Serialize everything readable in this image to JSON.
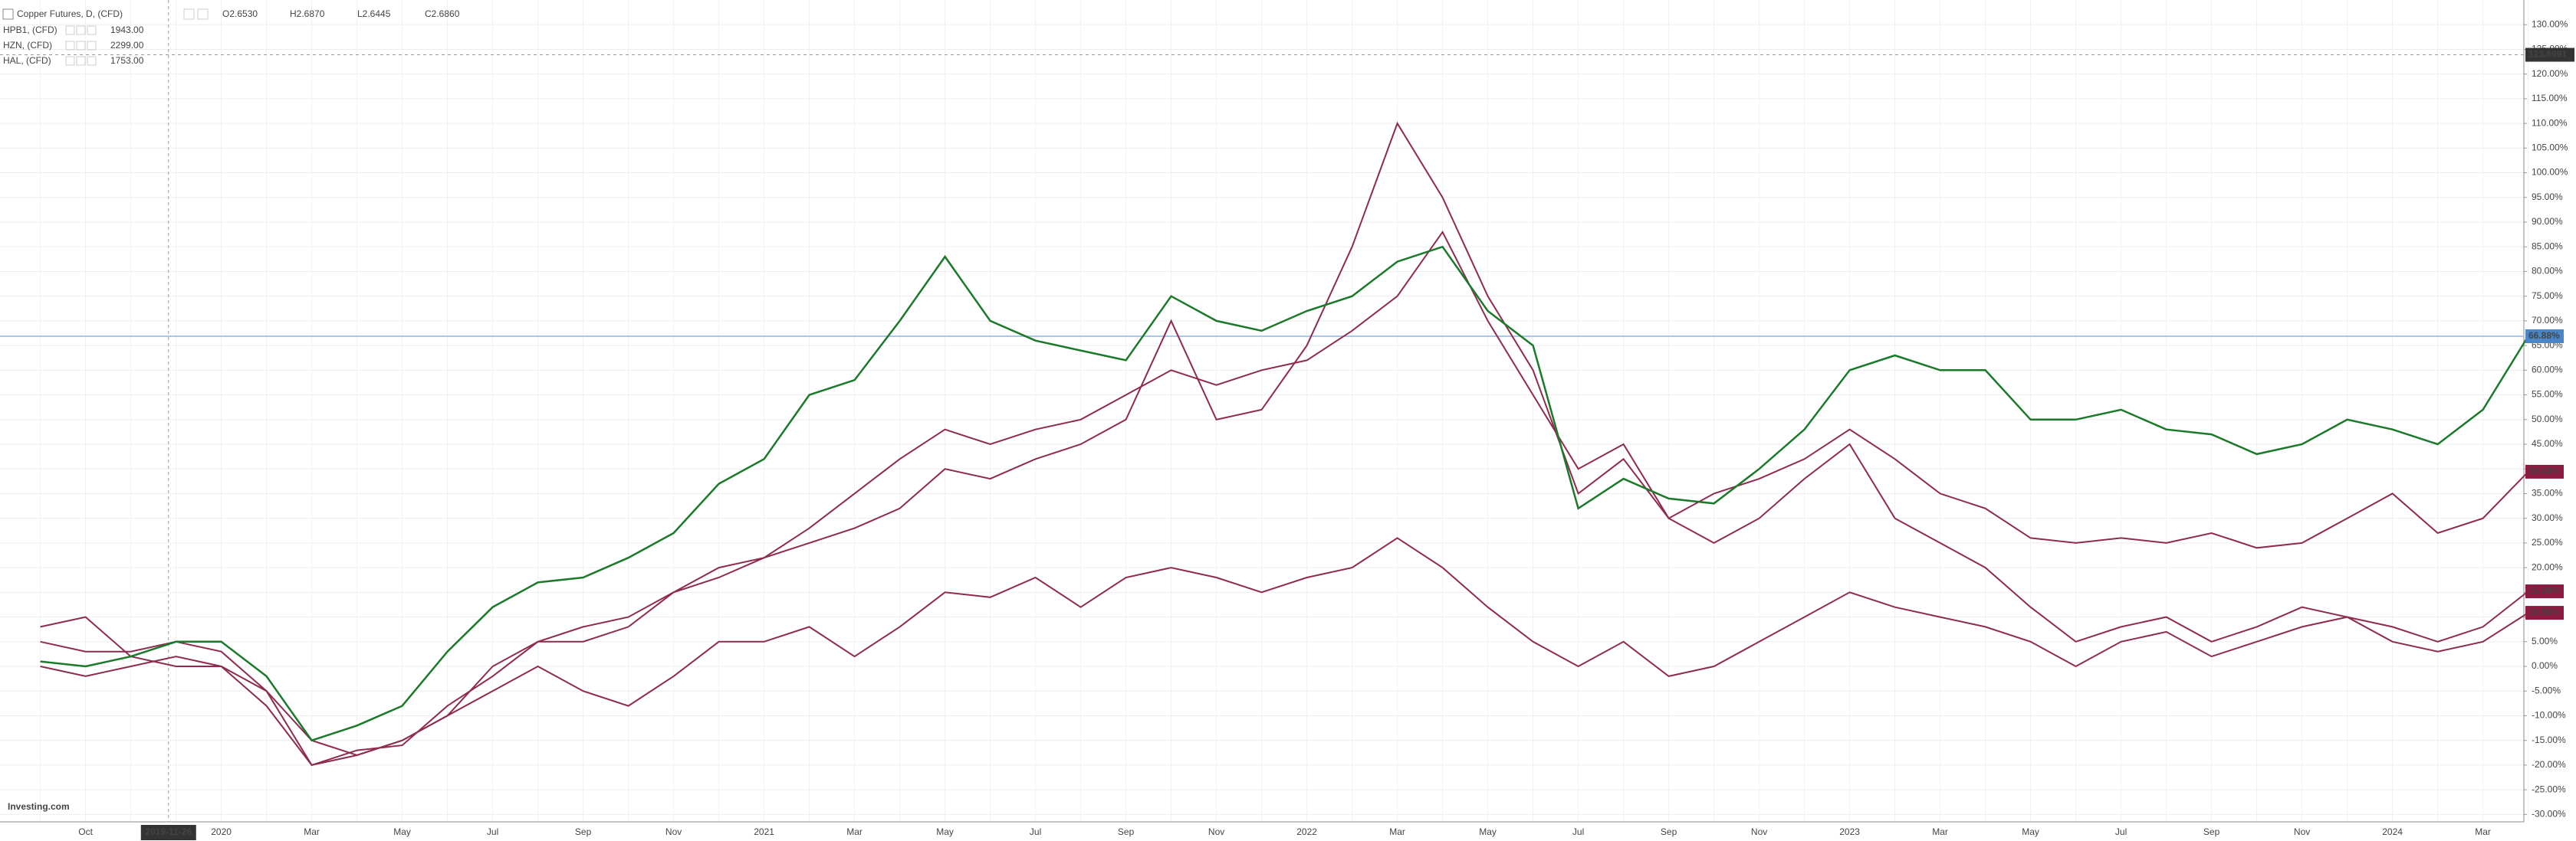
{
  "chart_data": {
    "type": "line",
    "title": "Copper Futures, D, (CFD)",
    "ohlc": [
      "O2.6530",
      "H2.6870",
      "L2.6445",
      "C2.6860"
    ],
    "logo": "Investing.com",
    "crosshair_x": "2019-11-26",
    "crosshair_y": 123.8991,
    "grid": true,
    "categories": [
      null,
      "Oct",
      null,
      null,
      "2020",
      null,
      "Mar",
      null,
      "May",
      null,
      "Jul",
      null,
      "Sep",
      null,
      "Nov",
      null,
      "2021",
      null,
      "Mar",
      null,
      "May",
      null,
      "Jul",
      null,
      "Sep",
      null,
      "Nov",
      null,
      "2022",
      null,
      "Mar",
      null,
      "May",
      null,
      "Jul",
      null,
      "Sep",
      null,
      "Nov",
      null,
      "2023",
      null,
      "Mar",
      null,
      "May",
      null,
      "Jul",
      null,
      "Sep",
      null,
      "Nov",
      null,
      "2024",
      null,
      "Mar",
      null
    ],
    "series": [
      {
        "name": "Copper Futures, D, (CFD)",
        "color": "#1b7a2a",
        "end_label": "66.88%",
        "end_color": "#4a86c8",
        "values": [
          1,
          0,
          2,
          5,
          5,
          -2,
          -15,
          -12,
          -8,
          3,
          12,
          17,
          18,
          22,
          27,
          37,
          42,
          55,
          58,
          70,
          83,
          70,
          66,
          64,
          62,
          75,
          70,
          68,
          72,
          75,
          82,
          85,
          72,
          65,
          32,
          38,
          34,
          33,
          40,
          48,
          60,
          63,
          60,
          60,
          50,
          50,
          52,
          48,
          47,
          43,
          45,
          50,
          48,
          45,
          52,
          66.88
        ]
      },
      {
        "name": "HPB1, (CFD)",
        "price": "1943.00",
        "color": "#8e2b4f",
        "end_label": "39.43%",
        "end_color": "#8e1a40",
        "values": [
          5,
          3,
          3,
          5,
          3,
          -5,
          -20,
          -18,
          -15,
          -10,
          0,
          5,
          8,
          10,
          15,
          20,
          22,
          25,
          28,
          32,
          40,
          38,
          42,
          45,
          50,
          70,
          50,
          52,
          65,
          85,
          110,
          95,
          75,
          60,
          35,
          42,
          30,
          35,
          38,
          42,
          48,
          42,
          35,
          32,
          26,
          25,
          26,
          25,
          27,
          24,
          25,
          30,
          35,
          27,
          30,
          39.43
        ]
      },
      {
        "name": "HZN, (CFD)",
        "price": "2299.00",
        "color": "#8e2b4f",
        "end_label": "15.20%",
        "end_color": "#8e1a40",
        "values": [
          8,
          10,
          2,
          0,
          0,
          -8,
          -20,
          -17,
          -16,
          -8,
          -2,
          5,
          5,
          8,
          15,
          18,
          22,
          28,
          35,
          42,
          48,
          45,
          48,
          50,
          55,
          60,
          57,
          60,
          62,
          68,
          75,
          88,
          70,
          55,
          40,
          45,
          30,
          25,
          30,
          38,
          45,
          30,
          25,
          20,
          12,
          5,
          8,
          10,
          5,
          8,
          12,
          10,
          8,
          5,
          8,
          15.2
        ]
      },
      {
        "name": "HAL, (CFD)",
        "price": "1753.00",
        "color": "#8e2b4f",
        "end_label": "10.85%",
        "end_color": "#8e1a40",
        "values": [
          0,
          -2,
          0,
          2,
          0,
          -5,
          -15,
          -18,
          -15,
          -10,
          -5,
          0,
          -5,
          -8,
          -2,
          5,
          5,
          8,
          2,
          8,
          15,
          14,
          18,
          12,
          18,
          20,
          18,
          15,
          18,
          20,
          26,
          20,
          12,
          5,
          0,
          5,
          -2,
          0,
          5,
          10,
          15,
          12,
          10,
          8,
          5,
          0,
          5,
          7,
          2,
          5,
          8,
          10,
          5,
          3,
          5,
          10.85
        ]
      }
    ],
    "ylim": [
      -31.5,
      135
    ],
    "yticks": [
      {
        "value": -30,
        "label": "-30.00%"
      },
      {
        "value": -25,
        "label": "-25.00%"
      },
      {
        "value": -20,
        "label": "-20.00%"
      },
      {
        "value": -15,
        "label": "-15.00%"
      },
      {
        "value": -10,
        "label": "-10.00%"
      },
      {
        "value": -5,
        "label": "-5.00%"
      },
      {
        "value": 0,
        "label": "0.00%"
      },
      {
        "value": 5,
        "label": "5.00%"
      },
      {
        "value": 10,
        "label": "10.00%"
      },
      {
        "value": 15,
        "label": "15.00%"
      },
      {
        "value": 20,
        "label": "20.00%"
      },
      {
        "value": 25,
        "label": "25.00%"
      },
      {
        "value": 30,
        "label": "30.00%"
      },
      {
        "value": 35,
        "label": "35.00%"
      },
      {
        "value": 40,
        "label": "40.00%"
      },
      {
        "value": 45,
        "label": "45.00%"
      },
      {
        "value": 50,
        "label": "50.00%"
      },
      {
        "value": 55,
        "label": "55.00%"
      },
      {
        "value": 60,
        "label": "60.00%"
      },
      {
        "value": 65,
        "label": "65.00%"
      },
      {
        "value": 70,
        "label": "70.00%"
      },
      {
        "value": 75,
        "label": "75.00%"
      },
      {
        "value": 80,
        "label": "80.00%"
      },
      {
        "value": 85,
        "label": "85.00%"
      },
      {
        "value": 90,
        "label": "90.00%"
      },
      {
        "value": 95,
        "label": "95.00%"
      },
      {
        "value": 100,
        "label": "100.00%"
      },
      {
        "value": 105,
        "label": "105.00%"
      },
      {
        "value": 110,
        "label": "110.00%"
      },
      {
        "value": 115,
        "label": "115.00%"
      },
      {
        "value": 120,
        "label": "120.00%"
      },
      {
        "value": 125,
        "label": "125.00%"
      },
      {
        "value": 130,
        "label": "130.00%"
      }
    ]
  }
}
